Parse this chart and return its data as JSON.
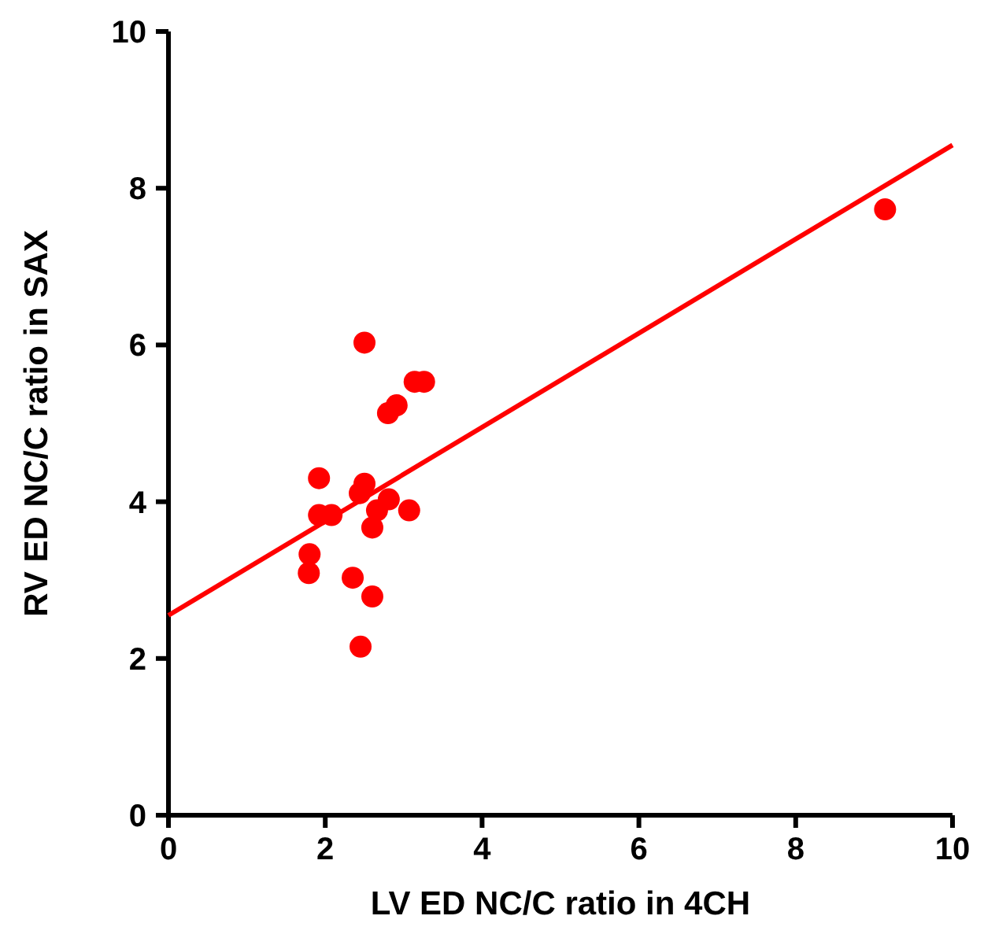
{
  "chart_data": {
    "type": "scatter",
    "xlabel": "LV ED NC/C ratio in 4CH",
    "ylabel": "RV ED NC/C ratio in SAX",
    "xlim": [
      0,
      10
    ],
    "ylim": [
      0,
      10
    ],
    "xticks": [
      0,
      2,
      4,
      6,
      8,
      10
    ],
    "yticks": [
      0,
      2,
      4,
      6,
      8,
      10
    ],
    "grid": false,
    "series": [
      {
        "color": "#ff0000",
        "marker": "circle",
        "x": [
          2.5,
          3.14,
          3.26,
          2.91,
          2.8,
          1.92,
          2.5,
          2.44,
          2.81,
          3.07,
          2.66,
          1.92,
          2.08,
          2.6,
          1.8,
          1.79,
          2.35,
          2.6,
          2.45,
          9.14
        ],
        "values": [
          6.03,
          5.53,
          5.53,
          5.23,
          5.13,
          4.3,
          4.23,
          4.11,
          4.03,
          3.89,
          3.89,
          3.83,
          3.83,
          3.67,
          3.33,
          3.09,
          3.03,
          2.79,
          2.15,
          7.73
        ]
      },
      {
        "type": "line",
        "color": "#ff0000",
        "marker": "none",
        "x": [
          0,
          10
        ],
        "values": [
          2.55,
          8.55
        ]
      }
    ]
  }
}
